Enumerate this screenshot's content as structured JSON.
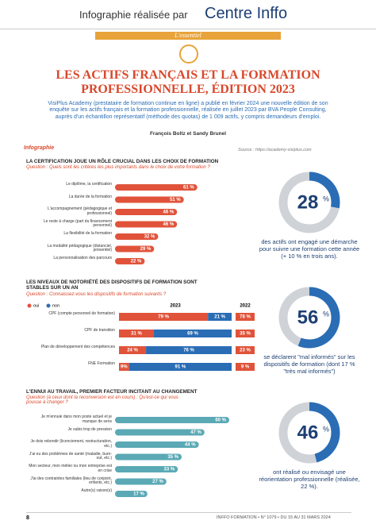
{
  "header": {
    "text": "Infographie réalisée par",
    "brand": "Centre Inffo"
  },
  "kicker": "L'essentiel",
  "title": "LES ACTIFS FRANÇAIS ET LA FORMATION PROFESSIONNELLE, ÉDITION 2023",
  "intro": "VisiPlus Academy (prestataire de formation continue en ligne) a publié en février 2024 une nouvelle édition de son enquête sur les actifs français et la formation professionnelle, réalisée en juillet 2023 par BVA People Consulting, auprès d'un échantillon représentatif (méthode des quotas) de 1 009 actifs, y compris demandeurs d'emploi.",
  "authors": "François Boltz et Sandy Brunel",
  "tag": "Infographie",
  "source": "Source : https://academy-visiplus.com",
  "charts": [
    {
      "type": "bar",
      "title": "LA CERTIFICATION JOUE UN RÔLE CRUCIAL DANS LES CHOIX DE FORMATION",
      "question": "Question : Quels sont les critères les plus importants dans le choix de votre formation ?",
      "color": "#e0533a",
      "categories": [
        "Le diplôme, la certification",
        "La durée de la formation",
        "L'accompagnement (pédagogique et professionnel)",
        "Le reste à charge (part du financement personnel)",
        "La flexibilité de la formation",
        "La modalité pédagogique (distanciel, présentiel)",
        "La personnalisation des parcours"
      ],
      "values": [
        61,
        51,
        46,
        46,
        32,
        29,
        22
      ],
      "value_labels": [
        "61 %",
        "51 %",
        "46 %",
        "46 %",
        "32 %",
        "29 %",
        "22 %"
      ]
    },
    {
      "type": "stacked-bar",
      "title": "LES NIVEAUX DE NOTORIÉTÉ DES DISPOSITIFS DE FORMATION SONT STABLES SUR UN AN",
      "question": "Question : Connaissez-vous les dispositifs de formation suivants ?",
      "current_label": "2023",
      "categories": [
        "CPF (compte personnel de formation)",
        "CPF de transition",
        "Plan de développement des compétences",
        "FNE Formation"
      ],
      "series": [
        {
          "name": "oui",
          "color": "#e0533a",
          "values": [
            79,
            31,
            24,
            9
          ],
          "value_labels": [
            "79 %",
            "31 %",
            "24 %",
            "9%"
          ]
        },
        {
          "name": "non",
          "color": "#2a6db5",
          "values": [
            21,
            69,
            76,
            91
          ],
          "value_labels": [
            "21 %",
            "69 %",
            "76 %",
            "91 %"
          ]
        }
      ],
      "previous": {
        "name": "2022",
        "color": "#e0533a",
        "values": [
          78,
          35,
          23,
          9
        ],
        "value_labels": [
          "78 %",
          "35 %",
          "23 %",
          "9 %"
        ]
      }
    },
    {
      "type": "bar",
      "title": "L'ENNUI AU TRAVAIL, PREMIER FACTEUR INCITANT AU CHANGEMENT",
      "question": "Question (à ceux dont la reconversion est en cours) : Qu'est-ce qui vous pousse à changer ?",
      "color": "#5aa9b5",
      "categories": [
        "Je m'ennuie dans mon poste actuel et je manque de sens",
        "Je subis trop de pression",
        "Je dois rebondir (licenciement, restructuration, etc.)",
        "J'ai eu des problèmes de santé (maladie, burn-out, etc.)",
        "Mon secteur, mon métier ou mon entreprise est en crise",
        "J'ai des contraintes familiales (lieu de conjoint, enfants, etc.)",
        "Autre(s) raison(s)"
      ],
      "values": [
        60,
        47,
        44,
        35,
        33,
        27,
        17
      ],
      "value_labels": [
        "60 %",
        "47 %",
        "44 %",
        "35 %",
        "33 %",
        "27 %",
        "17 %"
      ]
    }
  ],
  "stats": [
    {
      "value": 28,
      "unit": "%",
      "text": "des actifs ont engagé une démarche pour suivre une formation cette année (+ 10 % en trois ans)."
    },
    {
      "value": 56,
      "unit": "%",
      "text": "se déclarent \"mal informés\" sur les dispositifs de formation (dont 17 % \"très mal informés\")"
    },
    {
      "value": 46,
      "unit": "%",
      "text": "ont réalisé ou envisagé une réorientation professionnelle (réalisée, 22 %)."
    }
  ],
  "footer": {
    "page": "8",
    "journal": "INFFO FORMATION • N° 1079 • DU 15 AU 31 MARS 2024"
  }
}
